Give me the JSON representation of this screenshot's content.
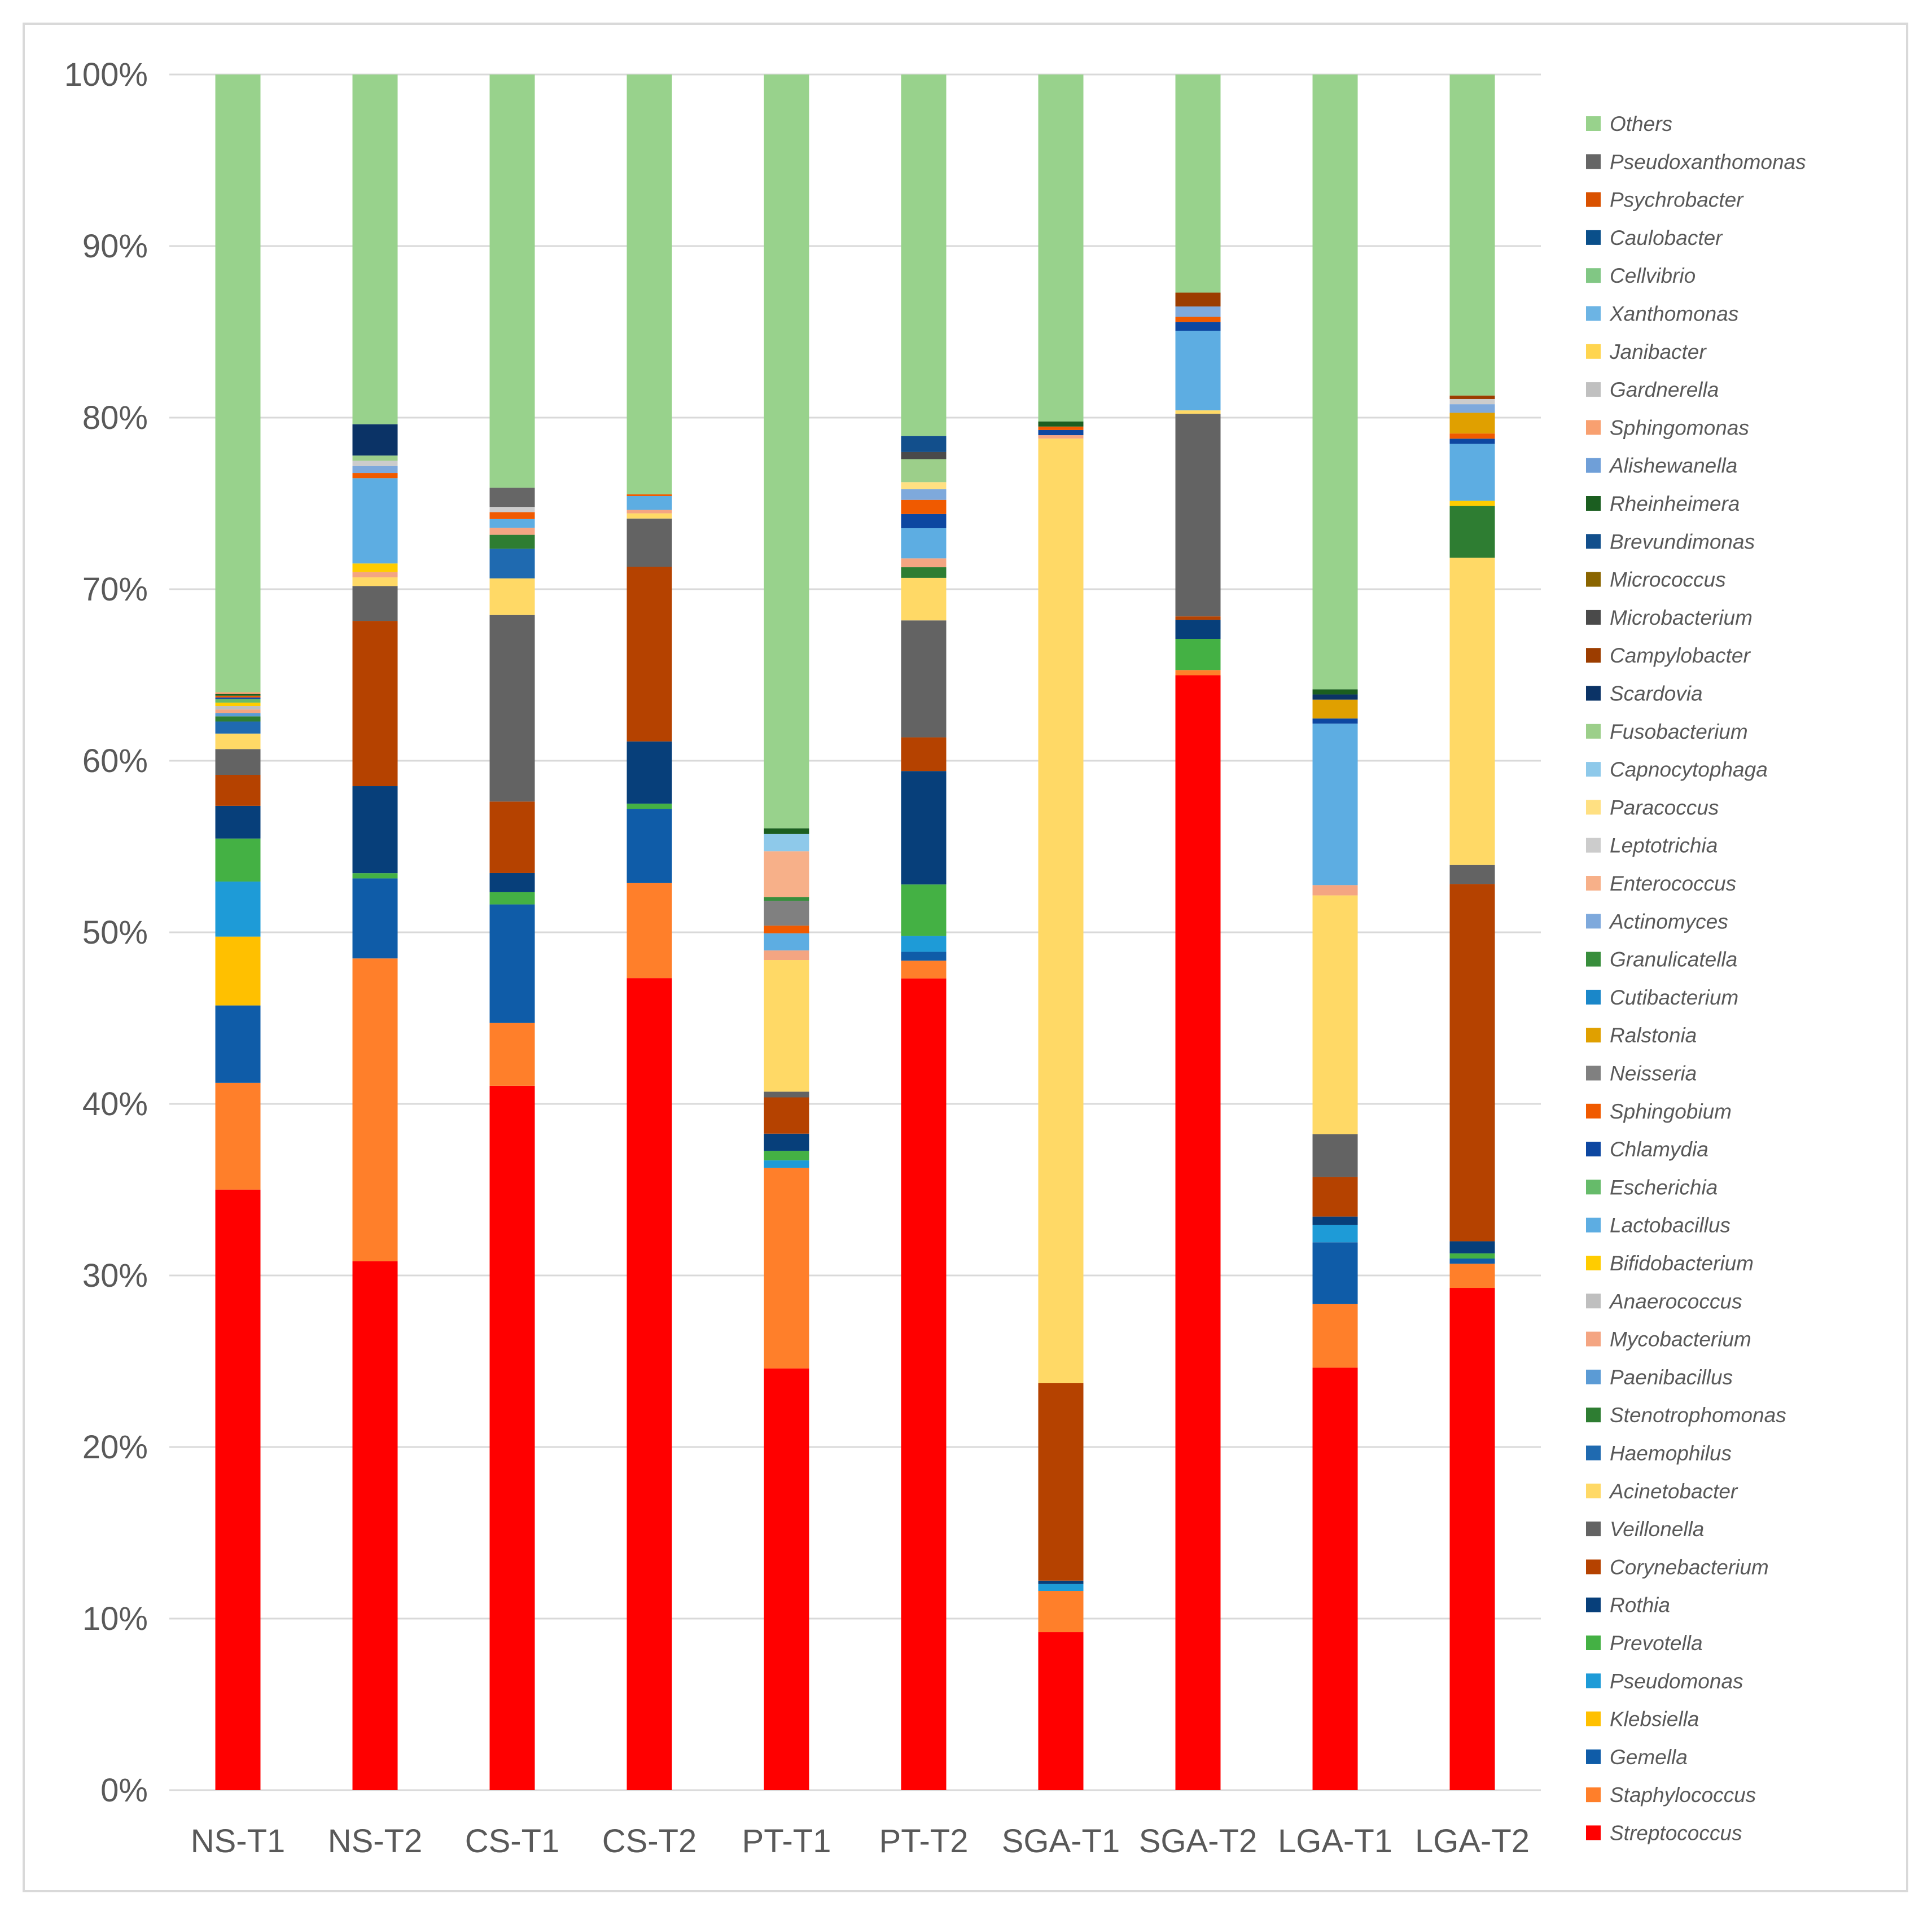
{
  "chart_data": {
    "type": "bar",
    "stacked": true,
    "percent_stacked": true,
    "title": "",
    "xlabel": "",
    "ylabel": "",
    "ylim": [
      0,
      100
    ],
    "y_ticks": [
      "0%",
      "10%",
      "20%",
      "30%",
      "40%",
      "50%",
      "60%",
      "70%",
      "80%",
      "90%",
      "100%"
    ],
    "grid": "horizontal",
    "legend_position": "right",
    "categories": [
      "NS-T1",
      "NS-T2",
      "CS-T1",
      "CS-T2",
      "PT-T1",
      "PT-T2",
      "SGA-T1",
      "SGA-T2",
      "LGA-T1",
      "LGA-T2"
    ],
    "series": [
      {
        "name": "Streptococcus",
        "color": "#ff0000",
        "values": [
          34.9,
          30.4,
          40.4,
          47.0,
          22.1,
          45.8,
          9.2,
          64.4,
          24.6,
          29.1
        ]
      },
      {
        "name": "Staphylococcus",
        "color": "#ff7f2a",
        "values": [
          6.2,
          17.4,
          3.6,
          5.5,
          10.5,
          1.0,
          2.4,
          0.3,
          3.7,
          1.4
        ]
      },
      {
        "name": "Gemella",
        "color": "#0f5ca8",
        "values": [
          4.5,
          4.6,
          6.8,
          4.3,
          0.0,
          0.5,
          0.0,
          0.0,
          3.6,
          0.3
        ]
      },
      {
        "name": "Klebsiella",
        "color": "#ffc000",
        "values": [
          4.0,
          0.0,
          0.0,
          0.0,
          0.0,
          0.0,
          0.0,
          0.0,
          0.0,
          0.0
        ]
      },
      {
        "name": "Pseudomonas",
        "color": "#1e9bd7",
        "values": [
          3.2,
          0.0,
          0.0,
          0.0,
          0.4,
          0.9,
          0.4,
          0.0,
          1.0,
          0.0
        ]
      },
      {
        "name": "Prevotella",
        "color": "#44b144",
        "values": [
          2.5,
          0.3,
          0.7,
          0.3,
          0.5,
          2.9,
          0.0,
          1.8,
          0.0,
          0.3
        ]
      },
      {
        "name": "Rothia",
        "color": "#073f7a",
        "values": [
          1.9,
          5.0,
          1.1,
          3.6,
          0.9,
          6.4,
          0.2,
          1.1,
          0.5,
          0.7
        ]
      },
      {
        "name": "Corynebacterium",
        "color": "#b54200",
        "values": [
          1.8,
          9.5,
          4.1,
          10.1,
          1.9,
          1.9,
          11.5,
          0.2,
          2.3,
          20.7
        ]
      },
      {
        "name": "Veillonella",
        "color": "#636363",
        "values": [
          1.5,
          2.0,
          10.7,
          2.8,
          0.3,
          6.6,
          0.0,
          11.7,
          2.5,
          1.1
        ]
      },
      {
        "name": "Acinetobacter",
        "color": "#ffd966",
        "values": [
          0.9,
          0.5,
          2.1,
          0.3,
          6.9,
          2.4,
          55.0,
          0.2,
          13.9,
          17.8
        ]
      },
      {
        "name": "Haemophilus",
        "color": "#1f6ab0",
        "values": [
          0.7,
          0.0,
          1.7,
          0.0,
          0.0,
          0.0,
          0.0,
          0.0,
          0.0,
          0.0
        ]
      },
      {
        "name": "Stenotrophomonas",
        "color": "#2e7d32",
        "values": [
          0.3,
          0.0,
          0.8,
          0.0,
          0.0,
          0.6,
          0.0,
          0.0,
          0.0,
          3.0
        ]
      },
      {
        "name": "Paenibacillus",
        "color": "#5b9bd5",
        "values": [
          0.2,
          0.0,
          0.0,
          0.0,
          0.0,
          0.0,
          0.0,
          0.0,
          0.0,
          0.0
        ]
      },
      {
        "name": "Mycobacterium",
        "color": "#f4a582",
        "values": [
          0.2,
          0.3,
          0.4,
          0.2,
          0.5,
          0.5,
          0.2,
          0.0,
          0.6,
          0.0
        ]
      },
      {
        "name": "Anaerococcus",
        "color": "#bfbfbf",
        "values": [
          0.2,
          0.0,
          0.0,
          0.0,
          0.0,
          0.0,
          0.0,
          0.0,
          0.0,
          0.0
        ]
      },
      {
        "name": "Bifidobacterium",
        "color": "#ffcc00",
        "values": [
          0.2,
          0.5,
          0.0,
          0.0,
          0.0,
          0.0,
          0.0,
          0.0,
          0.0,
          0.3
        ]
      },
      {
        "name": "Lactobacillus",
        "color": "#5dade2",
        "values": [
          0.0,
          4.9,
          0.5,
          0.8,
          0.9,
          1.7,
          0.0,
          4.6,
          9.4,
          3.3
        ]
      },
      {
        "name": "Escherichia",
        "color": "#66bb6a",
        "values": [
          0.2,
          0.0,
          0.0,
          0.0,
          0.0,
          0.0,
          0.0,
          0.0,
          0.0,
          0.0
        ]
      },
      {
        "name": "Chlamydia",
        "color": "#0d47a1",
        "values": [
          0.1,
          0.0,
          0.0,
          0.0,
          0.0,
          0.8,
          0.3,
          0.5,
          0.3,
          0.3
        ]
      },
      {
        "name": "Sphingobium",
        "color": "#f05a00",
        "values": [
          0.1,
          0.3,
          0.4,
          0.1,
          0.4,
          0.8,
          0.2,
          0.3,
          0.0,
          0.3
        ]
      },
      {
        "name": "Neisseria",
        "color": "#808080",
        "values": [
          0.0,
          0.0,
          0.0,
          0.0,
          1.3,
          0.0,
          0.0,
          0.0,
          0.0,
          0.0
        ]
      },
      {
        "name": "Ralstonia",
        "color": "#e0a000",
        "values": [
          0.0,
          0.0,
          0.0,
          0.0,
          0.0,
          0.0,
          0.0,
          0.0,
          1.1,
          1.2
        ]
      },
      {
        "name": "Cutibacterium",
        "color": "#1a87c9",
        "values": [
          0.0,
          0.0,
          0.0,
          0.0,
          0.0,
          0.0,
          0.0,
          0.0,
          0.0,
          0.0
        ]
      },
      {
        "name": "Granulicatella",
        "color": "#388e3c",
        "values": [
          0.0,
          0.0,
          0.0,
          0.0,
          0.2,
          0.0,
          0.0,
          0.0,
          0.0,
          0.0
        ]
      },
      {
        "name": "Actinomyces",
        "color": "#7ea9dc",
        "values": [
          0.0,
          0.4,
          0.0,
          0.0,
          0.0,
          0.6,
          0.0,
          0.6,
          0.0,
          0.5
        ]
      },
      {
        "name": "Enterococcus",
        "color": "#f7b089",
        "values": [
          0.0,
          0.0,
          0.0,
          0.0,
          2.4,
          0.0,
          0.0,
          0.0,
          0.0,
          0.0
        ]
      },
      {
        "name": "Leptotrichia",
        "color": "#cccccc",
        "values": [
          0.0,
          0.3,
          0.3,
          0.0,
          0.0,
          0.0,
          0.0,
          0.0,
          0.0,
          0.3
        ]
      },
      {
        "name": "Paracoccus",
        "color": "#ffe082",
        "values": [
          0.0,
          0.0,
          0.0,
          0.0,
          0.0,
          0.4,
          0.0,
          0.0,
          0.0,
          0.0
        ]
      },
      {
        "name": "Capnocytophaga",
        "color": "#8ec9ea",
        "values": [
          0.0,
          0.0,
          0.0,
          0.0,
          0.9,
          0.0,
          0.0,
          0.0,
          0.0,
          0.0
        ]
      },
      {
        "name": "Fusobacterium",
        "color": "#9ccf8a",
        "values": [
          0.0,
          0.3,
          0.0,
          0.0,
          0.0,
          1.3,
          0.0,
          0.0,
          0.0,
          0.0
        ]
      },
      {
        "name": "Scardovia",
        "color": "#0b3366",
        "values": [
          0.0,
          1.8,
          0.0,
          0.0,
          0.0,
          0.0,
          0.0,
          0.0,
          0.3,
          0.0
        ]
      },
      {
        "name": "Campylobacter",
        "color": "#9c3d00",
        "values": [
          0.0,
          0.0,
          0.0,
          0.0,
          0.0,
          0.0,
          0.0,
          0.8,
          0.0,
          0.2
        ]
      },
      {
        "name": "Microbacterium",
        "color": "#4a4a4a",
        "values": [
          0.0,
          0.0,
          0.0,
          0.0,
          0.0,
          0.4,
          0.0,
          0.0,
          0.0,
          0.0
        ]
      },
      {
        "name": "Micrococcus",
        "color": "#8a6500",
        "values": [
          0.0,
          0.0,
          0.0,
          0.0,
          0.0,
          0.0,
          0.0,
          0.0,
          0.0,
          0.0
        ]
      },
      {
        "name": "Brevundimonas",
        "color": "#124f8c",
        "values": [
          0.0,
          0.0,
          0.0,
          0.0,
          0.0,
          0.9,
          0.0,
          0.0,
          0.0,
          0.0
        ]
      },
      {
        "name": "Rheinheimera",
        "color": "#1b5e20",
        "values": [
          0.1,
          0.0,
          0.0,
          0.0,
          0.3,
          0.0,
          0.3,
          0.0,
          0.3,
          0.0
        ]
      },
      {
        "name": "Alishewanella",
        "color": "#6f9fd8",
        "values": [
          0.0,
          0.0,
          0.0,
          0.0,
          0.0,
          0.0,
          0.0,
          0.0,
          0.0,
          0.0
        ]
      },
      {
        "name": "Sphingomonas",
        "color": "#f8a070",
        "values": [
          0.1,
          0.0,
          0.0,
          0.0,
          0.0,
          0.0,
          0.0,
          0.0,
          0.0,
          0.0
        ]
      },
      {
        "name": "Gardnerella",
        "color": "#c0c0c0",
        "values": [
          0.0,
          0.0,
          0.0,
          0.0,
          0.0,
          0.0,
          0.0,
          0.0,
          0.0,
          0.0
        ]
      },
      {
        "name": "Janibacter",
        "color": "#ffd54f",
        "values": [
          0.0,
          0.0,
          0.0,
          0.0,
          0.0,
          0.0,
          0.0,
          0.0,
          0.0,
          0.0
        ]
      },
      {
        "name": "Xanthomonas",
        "color": "#6cb4e4",
        "values": [
          0.0,
          0.0,
          0.0,
          0.0,
          0.0,
          0.0,
          0.0,
          0.0,
          0.0,
          0.0
        ]
      },
      {
        "name": "Cellvibrio",
        "color": "#81c784",
        "values": [
          0.0,
          0.0,
          0.0,
          0.0,
          0.0,
          0.0,
          0.0,
          0.0,
          0.0,
          0.0
        ]
      },
      {
        "name": "Caulobacter",
        "color": "#0a4f8a",
        "values": [
          0.0,
          0.0,
          0.0,
          0.0,
          0.0,
          0.0,
          0.0,
          0.0,
          0.0,
          0.0
        ]
      },
      {
        "name": "Psychrobacter",
        "color": "#d95100",
        "values": [
          0.0,
          0.0,
          0.0,
          0.0,
          0.0,
          0.0,
          0.0,
          0.0,
          0.0,
          0.0
        ]
      },
      {
        "name": "Pseudoxanthomonas",
        "color": "#666666",
        "values": [
          0.0,
          0.0,
          1.1,
          0.0,
          0.0,
          0.0,
          0.0,
          0.0,
          0.0,
          0.0
        ]
      },
      {
        "name": "Others",
        "color": "#98d28c",
        "values": [
          35.9,
          20.1,
          23.7,
          24.3,
          39.5,
          20.4,
          20.2,
          12.6,
          35.8,
          18.6
        ]
      }
    ]
  }
}
